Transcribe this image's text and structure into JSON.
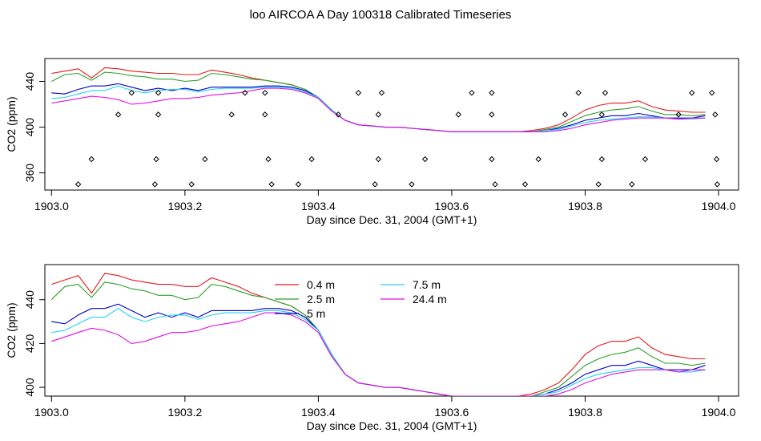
{
  "title": "loo AIRCOA A  Day 100318  Calibrated Timeseries",
  "chart_data": [
    {
      "type": "line+scatter",
      "xlabel": "Day since Dec. 31, 2004 (GMT+1)",
      "ylabel": "CO2 (ppm)",
      "xlim": [
        1902.99,
        1904.03
      ],
      "ylim": [
        345,
        460
      ],
      "xticks": [
        1903.0,
        1903.2,
        1903.4,
        1903.6,
        1903.8,
        1904.0
      ],
      "xtick_labels": [
        "1903.0",
        "1903.2",
        "1903.4",
        "1903.6",
        "1903.8",
        "1904.0"
      ],
      "yticks": [
        360,
        400,
        440
      ],
      "ytick_labels": [
        "360",
        "400",
        "440"
      ],
      "legend": "none",
      "series_ref": "shared_series",
      "scatter": {
        "color": "#000000",
        "marker": "open-diamond",
        "points": [
          [
            1903.04,
            350
          ],
          [
            1903.06,
            372
          ],
          [
            1903.1,
            411
          ],
          [
            1903.12,
            430
          ],
          [
            1903.155,
            350
          ],
          [
            1903.157,
            372
          ],
          [
            1903.16,
            411
          ],
          [
            1903.16,
            430
          ],
          [
            1903.21,
            350
          ],
          [
            1903.23,
            372
          ],
          [
            1903.27,
            411
          ],
          [
            1903.29,
            430
          ],
          [
            1903.32,
            411
          ],
          [
            1903.32,
            430
          ],
          [
            1903.325,
            372
          ],
          [
            1903.33,
            350
          ],
          [
            1903.37,
            350
          ],
          [
            1903.39,
            372
          ],
          [
            1903.43,
            411
          ],
          [
            1903.46,
            430
          ],
          [
            1903.485,
            350
          ],
          [
            1903.49,
            372
          ],
          [
            1903.49,
            411
          ],
          [
            1903.495,
            430
          ],
          [
            1903.54,
            350
          ],
          [
            1903.56,
            372
          ],
          [
            1903.61,
            411
          ],
          [
            1903.63,
            430
          ],
          [
            1903.66,
            430
          ],
          [
            1903.66,
            411
          ],
          [
            1903.66,
            372
          ],
          [
            1903.665,
            350
          ],
          [
            1903.71,
            350
          ],
          [
            1903.73,
            372
          ],
          [
            1903.77,
            411
          ],
          [
            1903.79,
            430
          ],
          [
            1903.82,
            350
          ],
          [
            1903.825,
            372
          ],
          [
            1903.825,
            411
          ],
          [
            1903.83,
            430
          ],
          [
            1903.87,
            350
          ],
          [
            1903.89,
            372
          ],
          [
            1903.94,
            411
          ],
          [
            1903.96,
            430
          ],
          [
            1903.99,
            430
          ],
          [
            1903.995,
            411
          ],
          [
            1903.997,
            372
          ],
          [
            1903.998,
            350
          ]
        ]
      }
    },
    {
      "type": "line",
      "xlabel": "Day since Dec. 31, 2004 (GMT+1)",
      "ylabel": "CO2 (ppm)",
      "xlim": [
        1902.99,
        1904.03
      ],
      "ylim": [
        396,
        456
      ],
      "xticks": [
        1903.0,
        1903.2,
        1903.4,
        1903.6,
        1903.8,
        1904.0
      ],
      "xtick_labels": [
        "1903.0",
        "1903.2",
        "1903.4",
        "1903.6",
        "1903.8",
        "1904.0"
      ],
      "yticks": [
        400,
        420,
        440
      ],
      "ytick_labels": [
        "400",
        "420",
        "440"
      ],
      "legend": "top-center",
      "series_ref": "shared_series"
    }
  ],
  "shared_series": {
    "x": [
      1903.0,
      1903.02,
      1903.04,
      1903.06,
      1903.08,
      1903.1,
      1903.12,
      1903.14,
      1903.16,
      1903.18,
      1903.2,
      1903.22,
      1903.24,
      1903.26,
      1903.28,
      1903.3,
      1903.32,
      1903.34,
      1903.36,
      1903.38,
      1903.4,
      1903.42,
      1903.44,
      1903.46,
      1903.48,
      1903.5,
      1903.52,
      1903.54,
      1903.56,
      1903.58,
      1903.6,
      1903.62,
      1903.64,
      1903.66,
      1903.68,
      1903.7,
      1903.72,
      1903.74,
      1903.76,
      1903.78,
      1903.8,
      1903.82,
      1903.84,
      1903.86,
      1903.88,
      1903.9,
      1903.92,
      1903.94,
      1903.96,
      1903.98
    ],
    "series": [
      {
        "name": "0.4 m",
        "color": "#e41a1c",
        "values": [
          447,
          449,
          451,
          443,
          452,
          451,
          449,
          448,
          447,
          447,
          446,
          446,
          450,
          448,
          446,
          443,
          441,
          439,
          437,
          433,
          426,
          415,
          406,
          402,
          401,
          400,
          400,
          399,
          398,
          397,
          396,
          396,
          396,
          396,
          396,
          396,
          397,
          399,
          402,
          408,
          415,
          419,
          421,
          421,
          423,
          418,
          415,
          414,
          413,
          413
        ]
      },
      {
        "name": "2.5 m",
        "color": "#2ca02c",
        "values": [
          440,
          446,
          447,
          441,
          448,
          447,
          445,
          444,
          442,
          442,
          440,
          441,
          447,
          446,
          444,
          442,
          441,
          439,
          437,
          433,
          426,
          415,
          406,
          402,
          401,
          400,
          400,
          399,
          398,
          397,
          396,
          396,
          396,
          396,
          396,
          396,
          396,
          398,
          400,
          405,
          410,
          413,
          415,
          416,
          418,
          414,
          411,
          411,
          410,
          411
        ]
      },
      {
        "name": "5 m",
        "color": "#0000cd",
        "values": [
          430,
          429,
          433,
          436,
          436,
          438,
          435,
          432,
          434,
          432,
          434,
          432,
          435,
          435,
          435,
          435,
          436,
          436,
          435,
          432,
          426,
          415,
          406,
          402,
          401,
          400,
          400,
          399,
          398,
          397,
          396,
          396,
          396,
          396,
          396,
          396,
          396,
          397,
          399,
          402,
          406,
          408,
          410,
          410,
          412,
          410,
          408,
          408,
          408,
          410
        ]
      },
      {
        "name": "7.5 m",
        "color": "#22d3ee",
        "values": [
          425,
          426,
          429,
          432,
          432,
          436,
          432,
          430,
          432,
          433,
          433,
          431,
          433,
          434,
          434,
          434,
          435,
          435,
          434,
          431,
          426,
          415,
          406,
          402,
          401,
          400,
          400,
          399,
          398,
          397,
          396,
          396,
          396,
          396,
          396,
          396,
          396,
          397,
          398,
          401,
          404,
          406,
          407,
          408,
          409,
          409,
          408,
          407,
          407,
          408
        ]
      },
      {
        "name": "24.4 m",
        "color": "#e20ee2",
        "values": [
          421,
          423,
          425,
          427,
          426,
          424,
          420,
          421,
          423,
          425,
          425,
          426,
          428,
          429,
          430,
          432,
          434,
          434,
          433,
          430,
          425,
          414,
          406,
          402,
          401,
          400,
          400,
          399,
          398,
          397,
          396,
          396,
          396,
          396,
          396,
          396,
          396,
          396,
          397,
          399,
          402,
          404,
          406,
          407,
          408,
          408,
          408,
          407,
          408,
          408
        ]
      }
    ]
  }
}
